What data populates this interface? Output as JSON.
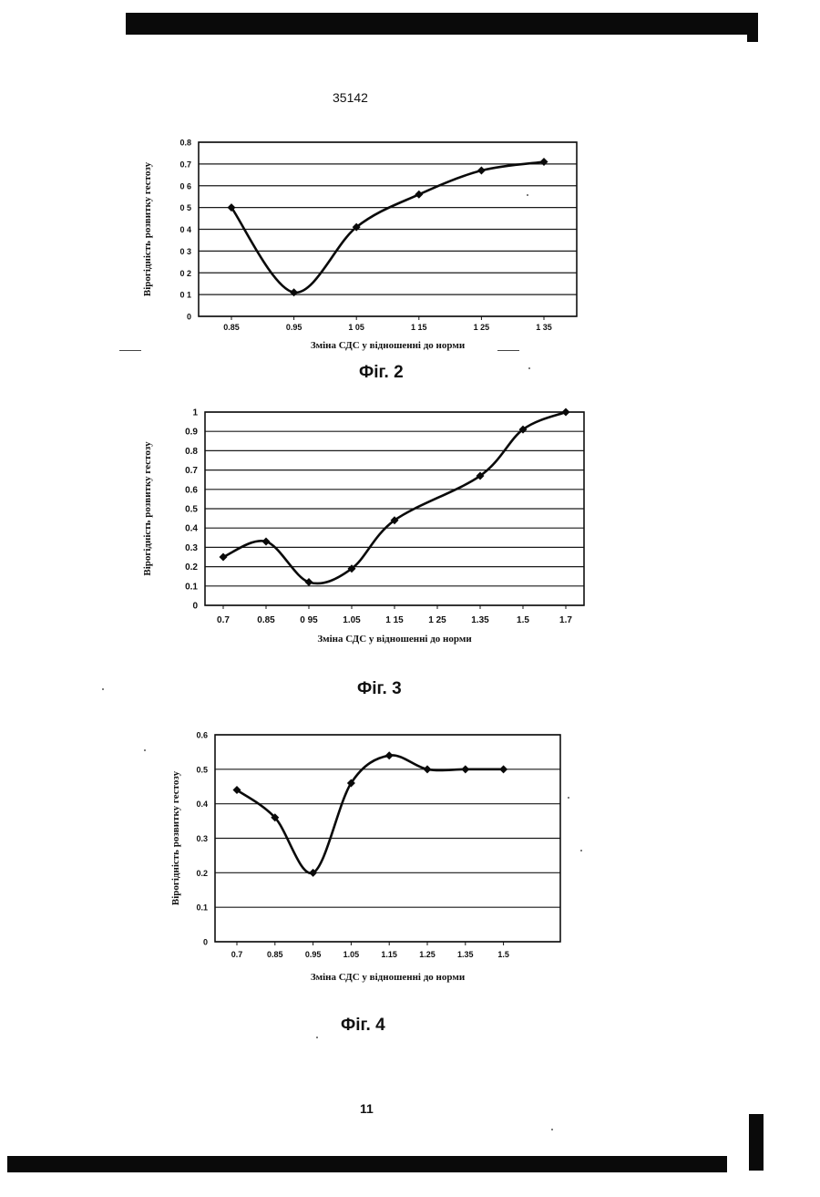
{
  "header": {
    "patent_number": "35142"
  },
  "footer": {
    "page_number": "11"
  },
  "chart_data": [
    {
      "type": "line",
      "caption": "Фіг. 2",
      "xlabel": "Зміна СДС у відношенні до норми",
      "ylabel": "Вірогідність розвитку гестозу",
      "x_tick_labels": [
        "0.85",
        "0.95",
        "1 05",
        "1 15",
        "1 25",
        "1 35"
      ],
      "y_tick_labels": [
        "0",
        "0 1",
        "0 2",
        "0 3",
        "0 4",
        "0 5",
        "0 6",
        "0.7",
        "0.8"
      ],
      "ylim": [
        0,
        0.8
      ],
      "grid": true,
      "x": [
        0.85,
        0.95,
        1.05,
        1.15,
        1.25,
        1.35
      ],
      "values": [
        0.5,
        0.11,
        0.41,
        0.56,
        0.67,
        0.71
      ]
    },
    {
      "type": "line",
      "caption": "Фіг. 3",
      "xlabel": "Зміна СДС у відношенні до норми",
      "ylabel": "Вірогідність розвитку гестозу",
      "x_tick_labels": [
        "0.7",
        "0.85",
        "0 95",
        "1.05",
        "1 15",
        "1 25",
        "1.35",
        "1.5",
        "1.7"
      ],
      "y_tick_labels": [
        "0",
        "0.1",
        "0.2",
        "0.3",
        "0.4",
        "0.5",
        "0.6",
        "0.7",
        "0.8",
        "0.9",
        "1"
      ],
      "ylim": [
        0,
        1
      ],
      "grid": true,
      "x": [
        0.7,
        0.85,
        0.95,
        1.05,
        1.15,
        1.25,
        1.35,
        1.5,
        1.7
      ],
      "values": [
        0.25,
        0.33,
        0.12,
        0.19,
        0.44,
        null,
        0.67,
        0.91,
        1.0
      ]
    },
    {
      "type": "line",
      "caption": "Фіг. 4",
      "xlabel": "Зміна СДС у відношенні до норми",
      "ylabel": "Вірогідність розвитку гестозу",
      "x_tick_labels": [
        "0.7",
        "0.85",
        "0.95",
        "1.05",
        "1.15",
        "1.25",
        "1.35",
        "1.5"
      ],
      "y_tick_labels": [
        "0",
        "0.1",
        "0.2",
        "0.3",
        "0.4",
        "0.5",
        "0.6"
      ],
      "ylim": [
        0,
        0.6
      ],
      "grid": true,
      "x": [
        0.7,
        0.85,
        0.95,
        1.05,
        1.15,
        1.25,
        1.35,
        1.5
      ],
      "values": [
        0.44,
        0.36,
        0.2,
        0.46,
        0.54,
        0.5,
        0.5,
        0.5
      ]
    }
  ]
}
